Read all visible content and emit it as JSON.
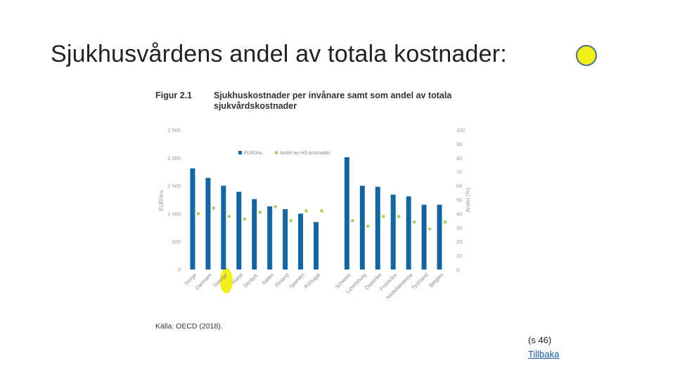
{
  "slide": {
    "title": "Sjukhusvårdens andel av totala kostnader:",
    "page_ref": "(s 46)",
    "back_link": "Tillbaka",
    "highlight_color": "#f3ef1a"
  },
  "figure": {
    "label": "Figur 2.1",
    "caption": "Sjukhuskostnader per invånare samt som andel av totala sjukvårdskostnader",
    "source": "Källa: OECD (2018)."
  },
  "chart_data": {
    "type": "bar",
    "categories": [
      "Norge",
      "Danmark",
      "Sverige",
      "Irland",
      "Storbrit.",
      "Italien",
      "Finland",
      "Spanien",
      "Portugal",
      "",
      "Schweiz",
      "Luxemburg",
      "Österrike",
      "Frankrike",
      "Nederländerna",
      "Tyskland",
      "Belgien"
    ],
    "highlighted_category": "Sverige",
    "series": [
      {
        "name": "EUR/inv.",
        "type": "bar",
        "axis": "left",
        "color": "#1565a0",
        "values": [
          1810,
          1640,
          1500,
          1390,
          1260,
          1130,
          1080,
          1000,
          850,
          null,
          2010,
          1500,
          1480,
          1340,
          1310,
          1160,
          1160
        ]
      },
      {
        "name": "Andel av HS-kostnader",
        "type": "scatter",
        "axis": "right",
        "color": "#a8cf5e",
        "values": [
          40,
          44,
          38,
          36,
          41,
          45,
          35,
          42,
          42,
          null,
          35,
          31,
          38,
          38,
          34,
          29,
          34
        ]
      }
    ],
    "ylabel_left": "EUR/inv.",
    "ylabel_right": "Andel (%)",
    "y_left_ticks": [
      "2 500",
      "2 000",
      "1 500",
      "1 000",
      "500",
      "0"
    ],
    "y_right_ticks": [
      "100",
      "90",
      "80",
      "70",
      "60",
      "50",
      "40",
      "30",
      "20",
      "10",
      "0"
    ],
    "ylim_left": [
      0,
      2500
    ],
    "ylim_right": [
      0,
      100
    ],
    "grid": false,
    "legend_position": "top-center"
  }
}
